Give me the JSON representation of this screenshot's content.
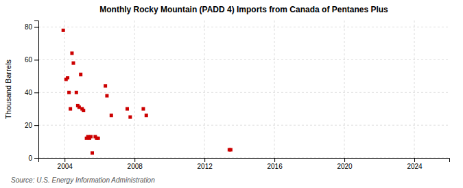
{
  "chart_data": {
    "type": "scatter",
    "title": "Monthly Rocky Mountain (PADD 4) Imports from Canada of Pentanes Plus",
    "ylabel": "Thousand Barrels",
    "annotation": "Source: U.S. Energy Information Administration",
    "color": "#cc0000",
    "marker": "square",
    "grid": true,
    "xlim": [
      2002.5,
      2026.0
    ],
    "ylim": [
      0,
      84
    ],
    "xticks": [
      2004,
      2008,
      2012,
      2016,
      2020,
      2024
    ],
    "yticks": [
      0,
      20,
      40,
      60,
      80
    ],
    "x": [
      2003.92,
      2004.08,
      2004.17,
      2004.25,
      2004.33,
      2004.42,
      2004.5,
      2004.67,
      2004.75,
      2004.83,
      2004.92,
      2005.0,
      2005.08,
      2005.25,
      2005.33,
      2005.42,
      2005.5,
      2005.58,
      2005.75,
      2005.83,
      2005.92,
      2006.33,
      2006.42,
      2006.67,
      2007.58,
      2007.75,
      2008.5,
      2008.67,
      2013.42,
      2013.5
    ],
    "values": [
      78,
      48,
      49,
      40,
      30,
      64,
      58,
      40,
      32,
      31,
      51,
      30,
      29,
      12,
      13,
      12,
      13,
      3,
      13,
      12,
      12,
      44,
      38,
      26,
      30,
      25,
      30,
      26,
      5,
      5
    ]
  }
}
